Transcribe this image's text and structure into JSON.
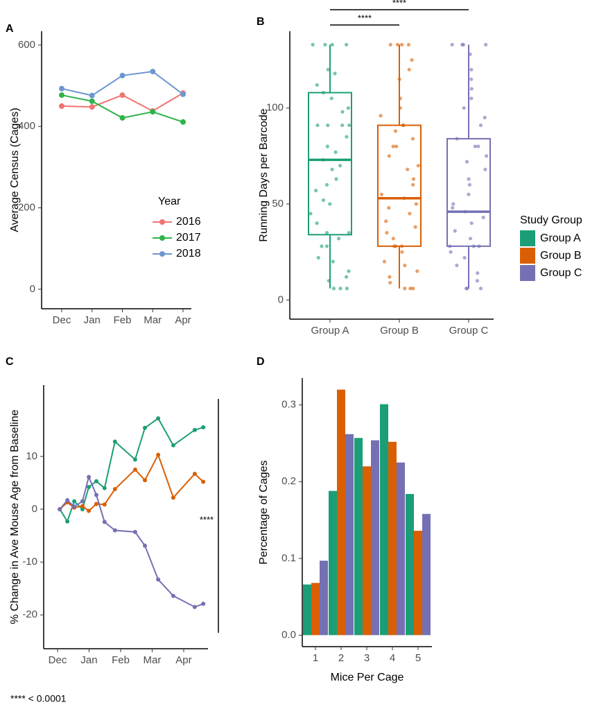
{
  "chart_data": [
    {
      "type": "line",
      "panel_label": "A",
      "categories": [
        "Dec",
        "Jan",
        "Feb",
        "Mar",
        "Apr"
      ],
      "ylabel": "Average Census (Cages)",
      "ylim": [
        -48,
        634
      ],
      "yticks": [
        0,
        200,
        400,
        600
      ],
      "legend": {
        "title": "Year"
      },
      "series": [
        {
          "name": "2016",
          "color": "#f07470",
          "values": [
            450,
            448,
            477,
            438,
            482
          ]
        },
        {
          "name": "2017",
          "color": "#2fb34a",
          "values": [
            477,
            462,
            421,
            436,
            411
          ]
        },
        {
          "name": "2018",
          "color": "#6d96d0",
          "values": [
            493,
            476,
            525,
            535,
            479
          ]
        }
      ]
    },
    {
      "type": "box",
      "panel_label": "B",
      "categories": [
        "Group A",
        "Group B",
        "Group C"
      ],
      "ylabel": "Running Days per Barcode",
      "ylim": [
        -10,
        140
      ],
      "yticks": [
        0,
        50,
        100
      ],
      "legend": {
        "title": "Study Group"
      },
      "annotations": [
        {
          "text": "****",
          "from": 0,
          "to": 1
        },
        {
          "text": "****",
          "from": 0,
          "to": 2
        }
      ],
      "series": [
        {
          "name": "Group A",
          "color": "#1b9e77",
          "min": 6,
          "q1": 34,
          "median": 73,
          "q3": 108,
          "max": 133,
          "points": [
            133,
            133,
            133,
            133,
            120,
            118,
            112,
            108,
            105,
            100,
            98,
            91,
            91,
            91,
            91,
            85,
            80,
            77,
            73,
            70,
            68,
            63,
            60,
            57,
            52,
            50,
            45,
            40,
            35,
            35,
            32,
            28,
            28,
            22,
            20,
            15,
            12,
            10,
            6,
            6,
            6
          ]
        },
        {
          "name": "Group B",
          "color": "#d95f02",
          "min": 6,
          "q1": 28,
          "median": 53,
          "q3": 91,
          "max": 133,
          "points": [
            133,
            133,
            133,
            133,
            125,
            120,
            115,
            105,
            100,
            96,
            91,
            91,
            88,
            84,
            80,
            80,
            75,
            70,
            68,
            63,
            60,
            55,
            53,
            50,
            48,
            45,
            41,
            38,
            35,
            32,
            28,
            28,
            28,
            25,
            20,
            18,
            15,
            12,
            9,
            6,
            6,
            6
          ]
        },
        {
          "name": "Group C",
          "color": "#7570b3",
          "min": 6,
          "q1": 28,
          "median": 46,
          "q3": 84,
          "max": 133,
          "points": [
            133,
            133,
            133,
            133,
            128,
            120,
            115,
            110,
            105,
            100,
            95,
            91,
            84,
            80,
            80,
            75,
            72,
            68,
            63,
            60,
            55,
            50,
            48,
            46,
            43,
            40,
            36,
            32,
            28,
            28,
            28,
            25,
            22,
            18,
            14,
            10,
            6,
            6,
            6
          ]
        }
      ]
    },
    {
      "type": "line",
      "panel_label": "C",
      "ylabel": "% Change in Ave Mouse Age from Baseline",
      "x": [
        0.07,
        0.31,
        0.53,
        0.79,
        0.99,
        1.23,
        1.49,
        1.82,
        2.46,
        2.77,
        3.19,
        3.67,
        4.35,
        4.62
      ],
      "xlim": [
        -0.44,
        4.77
      ],
      "xticks": [
        {
          "value": 0,
          "label": "Dec"
        },
        {
          "value": 1,
          "label": "Jan"
        },
        {
          "value": 2,
          "label": "Feb"
        },
        {
          "value": 3,
          "label": "Mar"
        },
        {
          "value": 4,
          "label": "Apr"
        }
      ],
      "ylim": [
        -26.4,
        23.5
      ],
      "yticks": [
        -20,
        -10,
        0,
        10
      ],
      "annotations": [
        {
          "text": "****"
        }
      ],
      "series": [
        {
          "color": "#1b9e77",
          "values": [
            0,
            -2.3,
            1.5,
            0,
            4.2,
            5.3,
            4,
            12.8,
            9.4,
            15.4,
            17.2,
            12.1,
            15,
            15.5
          ]
        },
        {
          "color": "#d95f02",
          "values": [
            0,
            1.3,
            0.3,
            0.6,
            -0.3,
            1,
            0.9,
            3.8,
            7.5,
            5.5,
            10.3,
            2.2,
            6.7,
            5.2
          ]
        },
        {
          "color": "#7570b3",
          "values": [
            0,
            1.7,
            0.5,
            1.5,
            6.1,
            2.7,
            -2.4,
            -4,
            -4.3,
            -6.9,
            -13.3,
            -16.4,
            -18.5,
            -17.9
          ]
        }
      ]
    },
    {
      "type": "bar",
      "panel_label": "D",
      "categories": [
        "1",
        "2",
        "3",
        "4",
        "5"
      ],
      "xlabel": "Mice Per Cage",
      "ylabel": "Percentage of Cages",
      "ylim": [
        -0.015,
        0.335
      ],
      "yticks": [
        {
          "value": 0,
          "label": "0.0"
        },
        0.1,
        0.2,
        0.3
      ],
      "series": [
        {
          "color": "#1b9e77",
          "values": [
            0.066,
            0.188,
            0.257,
            0.301,
            0.184
          ]
        },
        {
          "color": "#d95f02",
          "values": [
            0.068,
            0.32,
            0.22,
            0.252,
            0.136
          ]
        },
        {
          "color": "#7570b3",
          "values": [
            0.097,
            0.262,
            0.254,
            0.225,
            0.158
          ]
        }
      ]
    }
  ],
  "footnote": "**** < 0.0001"
}
